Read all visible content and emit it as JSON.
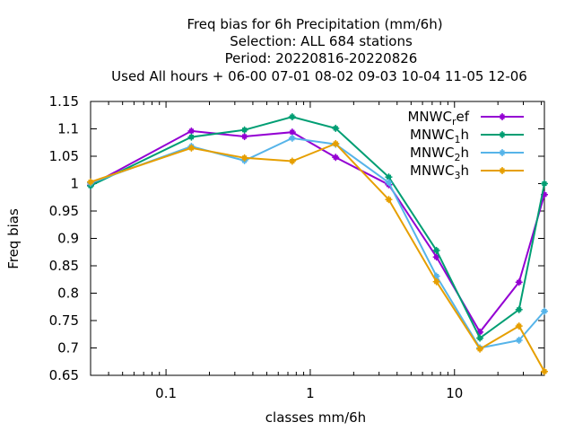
{
  "chart_data": {
    "type": "line",
    "title_lines": [
      "Freq bias  for 6h Precipitation (mm/6h)",
      "Selection: ALL    684 stations",
      "Period: 20220816-20220826",
      "Used  All hours  + 06-00 07-01 08-02 09-03 10-04 11-05 12-06"
    ],
    "xlabel": "classes mm/6h",
    "ylabel": "Freq bias",
    "x_scale": "log",
    "xlim": [
      0.03,
      42
    ],
    "ylim": [
      0.65,
      1.15
    ],
    "x_ticks": [
      {
        "value": 0.1,
        "label": "0.1"
      },
      {
        "value": 1,
        "label": "1"
      },
      {
        "value": 10,
        "label": "10"
      }
    ],
    "y_ticks": [
      {
        "value": 0.65,
        "label": "0.65"
      },
      {
        "value": 0.7,
        "label": "0.7"
      },
      {
        "value": 0.75,
        "label": "0.75"
      },
      {
        "value": 0.8,
        "label": "0.8"
      },
      {
        "value": 0.85,
        "label": "0.85"
      },
      {
        "value": 0.9,
        "label": "0.9"
      },
      {
        "value": 0.95,
        "label": "0.95"
      },
      {
        "value": 1,
        "label": "1"
      },
      {
        "value": 1.05,
        "label": "1.05"
      },
      {
        "value": 1.1,
        "label": "1.1"
      },
      {
        "value": 1.15,
        "label": "1.15"
      }
    ],
    "grid": false,
    "legend_position": "top-right",
    "x": [
      0.03,
      0.15,
      0.35,
      0.75,
      1.5,
      3.5,
      7.5,
      15,
      28,
      42
    ],
    "series": [
      {
        "name_base": "MNWC",
        "name_sub": "r",
        "name_tail": "ef",
        "color": "#9400d3",
        "values": [
          0.997,
          1.096,
          1.086,
          1.094,
          1.048,
          0.998,
          0.866,
          0.729,
          0.82,
          0.98
        ]
      },
      {
        "name_base": "MNWC",
        "name_sub": "1",
        "name_tail": "h",
        "color": "#009e73",
        "values": [
          0.996,
          1.085,
          1.098,
          1.122,
          1.101,
          1.012,
          0.878,
          0.718,
          0.77,
          1.0
        ]
      },
      {
        "name_base": "MNWC",
        "name_sub": "2",
        "name_tail": "h",
        "color": "#56b4e9",
        "values": [
          1.001,
          1.068,
          1.042,
          1.083,
          1.072,
          1.002,
          0.831,
          0.7,
          0.714,
          0.767
        ]
      },
      {
        "name_base": "MNWC",
        "name_sub": "3",
        "name_tail": "h",
        "color": "#e69f00",
        "values": [
          1.003,
          1.065,
          1.047,
          1.041,
          1.073,
          0.971,
          0.821,
          0.698,
          0.74,
          0.657
        ]
      }
    ]
  }
}
